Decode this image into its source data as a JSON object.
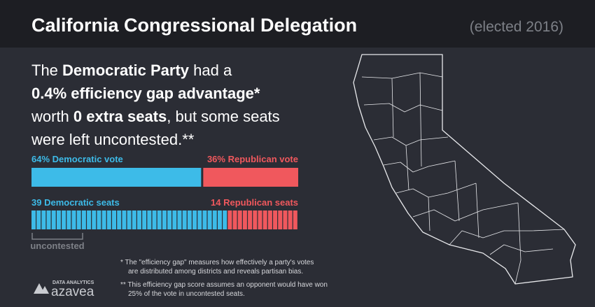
{
  "header": {
    "title": "California Congressional Delegation",
    "subtitle": "(elected 2016)"
  },
  "headline": {
    "lines": [
      [
        {
          "text": "The ",
          "bold": false
        },
        {
          "text": "Democratic Party",
          "bold": true
        },
        {
          "text": " had a",
          "bold": false
        }
      ],
      [
        {
          "text": "0.4% efficiency gap advantage*",
          "bold": true
        }
      ],
      [
        {
          "text": "worth ",
          "bold": false
        },
        {
          "text": "0 extra seats",
          "bold": true
        },
        {
          "text": ", but some seats",
          "bold": false
        }
      ],
      [
        {
          "text": "were left uncontested.**",
          "bold": false
        }
      ]
    ]
  },
  "vote": {
    "dem": {
      "label": "64% Democratic vote",
      "value": 64,
      "color": "#3dbbe8"
    },
    "rep": {
      "label": "36% Republican vote",
      "value": 36,
      "color": "#f0585d"
    }
  },
  "seats": {
    "dem": {
      "label": "39 Democratic seats",
      "value": 39,
      "color": "#3dbbe8"
    },
    "rep": {
      "label": "14 Republican seats",
      "value": 14,
      "color": "#f0585d"
    },
    "uncontested_label": "uncontested"
  },
  "footnotes": [
    [
      "* The \"efficiency gap\" measures how effectively a party's votes",
      "are distributed among districts and reveals partisan bias."
    ],
    [
      "** This efficiency gap score assumes an opponent would have won",
      "25% of the vote in uncontested seats."
    ]
  ],
  "logo": {
    "tagline": "DATA ANALYTICS",
    "name": "azavea"
  }
}
